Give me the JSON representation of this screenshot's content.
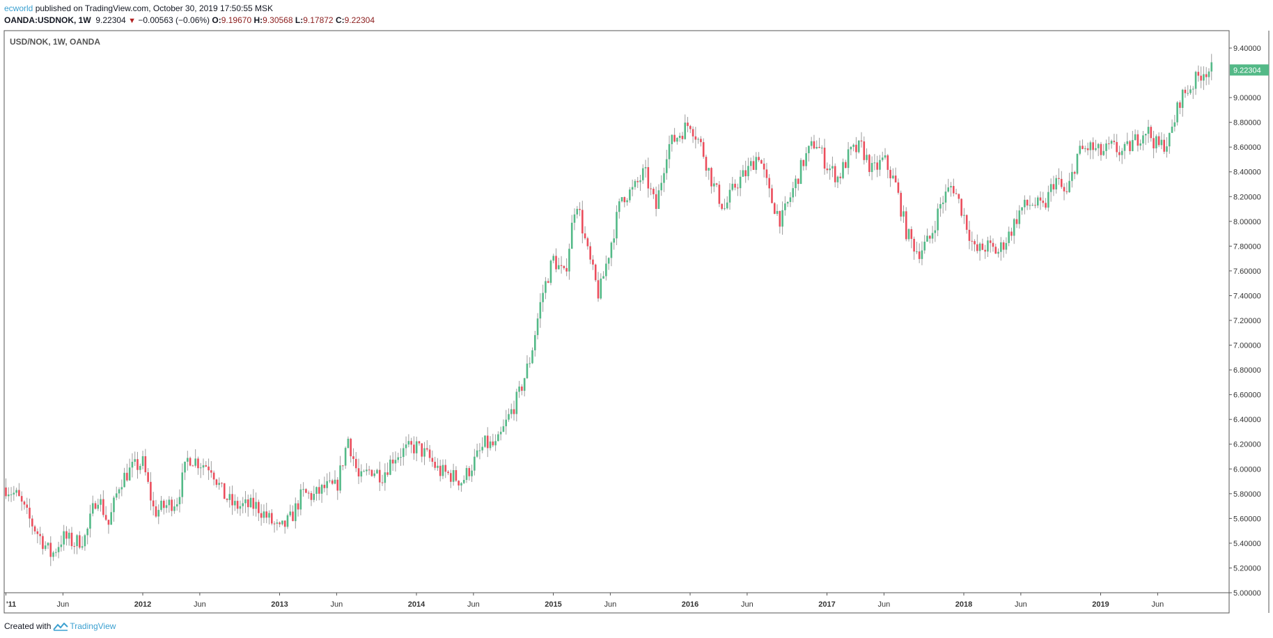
{
  "header": {
    "user": "ecworld",
    "published_text": " published on TradingView.com, October 30, 2019 17:50:55 MSK",
    "symbol": "OANDA:USDNOK, 1W",
    "last": "9.22304",
    "change": "−0.00563 (−0.06%)",
    "o_label": "O:",
    "o_value": "9.19670",
    "h_label": "H:",
    "h_value": "9.30568",
    "l_label": "L:",
    "l_value": "9.17872",
    "c_label": "C:",
    "c_value": "9.22304"
  },
  "footer": {
    "created_with": "Created with",
    "brand": "TradingView"
  },
  "chart_data": {
    "type": "candlestick",
    "title": "USD/NOK, 1W, OANDA",
    "y_ticks": [
      "9.40000",
      "9.00000",
      "8.80000",
      "8.60000",
      "8.40000",
      "8.20000",
      "8.00000",
      "7.80000",
      "7.60000",
      "7.40000",
      "7.20000",
      "7.00000",
      "6.80000",
      "6.60000",
      "6.40000",
      "6.20000",
      "6.00000",
      "5.80000",
      "5.60000",
      "5.40000",
      "5.20000",
      "5.00000"
    ],
    "ylim": [
      5.0,
      9.5
    ],
    "x_ticks": [
      {
        "label": "'11",
        "date": "2011-01"
      },
      {
        "label": "Jun",
        "date": "2011-06"
      },
      {
        "label": "2012",
        "date": "2012-01"
      },
      {
        "label": "Jun",
        "date": "2012-06"
      },
      {
        "label": "2013",
        "date": "2013-01"
      },
      {
        "label": "Jun",
        "date": "2013-06"
      },
      {
        "label": "2014",
        "date": "2014-01"
      },
      {
        "label": "Jun",
        "date": "2014-06"
      },
      {
        "label": "2015",
        "date": "2015-01"
      },
      {
        "label": "Jun",
        "date": "2015-06"
      },
      {
        "label": "2016",
        "date": "2016-01"
      },
      {
        "label": "Jun",
        "date": "2016-06"
      },
      {
        "label": "2017",
        "date": "2017-01"
      },
      {
        "label": "Jun",
        "date": "2017-06"
      },
      {
        "label": "2018",
        "date": "2018-01"
      },
      {
        "label": "Jun",
        "date": "2018-06"
      },
      {
        "label": "2019",
        "date": "2019-01"
      },
      {
        "label": "Jun",
        "date": "2019-06"
      }
    ],
    "last_price_label": "9.22304",
    "last_price": 9.22304,
    "colors": {
      "up": "#53b987",
      "down": "#eb4d5c",
      "wick": "#9b9b9b",
      "badge": "#53b987"
    },
    "series": [
      {
        "date": "2011-01",
        "close": 5.85
      },
      {
        "date": "2011-02",
        "close": 5.78
      },
      {
        "date": "2011-03",
        "close": 5.6
      },
      {
        "date": "2011-04",
        "close": 5.45
      },
      {
        "date": "2011-05",
        "close": 5.3
      },
      {
        "date": "2011-06",
        "close": 5.45
      },
      {
        "date": "2011-07",
        "close": 5.4
      },
      {
        "date": "2011-08",
        "close": 5.45
      },
      {
        "date": "2011-09",
        "close": 5.8
      },
      {
        "date": "2011-10",
        "close": 5.55
      },
      {
        "date": "2011-11",
        "close": 5.9
      },
      {
        "date": "2011-12",
        "close": 6.0
      },
      {
        "date": "2012-01",
        "close": 6.05
      },
      {
        "date": "2012-02",
        "close": 5.65
      },
      {
        "date": "2012-03",
        "close": 5.7
      },
      {
        "date": "2012-04",
        "close": 5.75
      },
      {
        "date": "2012-05",
        "close": 6.1
      },
      {
        "date": "2012-06",
        "close": 6.05
      },
      {
        "date": "2012-07",
        "close": 6.02
      },
      {
        "date": "2012-08",
        "close": 5.8
      },
      {
        "date": "2012-09",
        "close": 5.7
      },
      {
        "date": "2012-10",
        "close": 5.7
      },
      {
        "date": "2012-11",
        "close": 5.7
      },
      {
        "date": "2012-12",
        "close": 5.6
      },
      {
        "date": "2013-01",
        "close": 5.5
      },
      {
        "date": "2013-02",
        "close": 5.6
      },
      {
        "date": "2013-03",
        "close": 5.8
      },
      {
        "date": "2013-04",
        "close": 5.78
      },
      {
        "date": "2013-05",
        "close": 5.85
      },
      {
        "date": "2013-06",
        "close": 5.85
      },
      {
        "date": "2013-07",
        "close": 6.25
      },
      {
        "date": "2013-08",
        "close": 5.9
      },
      {
        "date": "2013-09",
        "close": 6.0
      },
      {
        "date": "2013-10",
        "close": 5.95
      },
      {
        "date": "2013-11",
        "close": 6.1
      },
      {
        "date": "2013-12",
        "close": 6.15
      },
      {
        "date": "2014-01",
        "close": 6.18
      },
      {
        "date": "2014-02",
        "close": 6.1
      },
      {
        "date": "2014-03",
        "close": 5.98
      },
      {
        "date": "2014-04",
        "close": 5.95
      },
      {
        "date": "2014-05",
        "close": 5.9
      },
      {
        "date": "2014-06",
        "close": 6.05
      },
      {
        "date": "2014-07",
        "close": 6.2
      },
      {
        "date": "2014-08",
        "close": 6.18
      },
      {
        "date": "2014-09",
        "close": 6.4
      },
      {
        "date": "2014-10",
        "close": 6.6
      },
      {
        "date": "2014-11",
        "close": 6.9
      },
      {
        "date": "2014-12",
        "close": 7.4
      },
      {
        "date": "2015-01",
        "close": 7.7
      },
      {
        "date": "2015-02",
        "close": 7.55
      },
      {
        "date": "2015-03",
        "close": 8.2
      },
      {
        "date": "2015-04",
        "close": 7.75
      },
      {
        "date": "2015-05",
        "close": 7.4
      },
      {
        "date": "2015-06",
        "close": 7.8
      },
      {
        "date": "2015-07",
        "close": 8.2
      },
      {
        "date": "2015-08",
        "close": 8.25
      },
      {
        "date": "2015-09",
        "close": 8.4
      },
      {
        "date": "2015-10",
        "close": 8.1
      },
      {
        "date": "2015-11",
        "close": 8.6
      },
      {
        "date": "2015-12",
        "close": 8.7
      },
      {
        "date": "2016-01",
        "close": 8.8
      },
      {
        "date": "2016-02",
        "close": 8.6
      },
      {
        "date": "2016-03",
        "close": 8.3
      },
      {
        "date": "2016-04",
        "close": 8.1
      },
      {
        "date": "2016-05",
        "close": 8.3
      },
      {
        "date": "2016-06",
        "close": 8.4
      },
      {
        "date": "2016-07",
        "close": 8.55
      },
      {
        "date": "2016-08",
        "close": 8.2
      },
      {
        "date": "2016-09",
        "close": 8.0
      },
      {
        "date": "2016-10",
        "close": 8.25
      },
      {
        "date": "2016-11",
        "close": 8.5
      },
      {
        "date": "2016-12",
        "close": 8.65
      },
      {
        "date": "2017-01",
        "close": 8.45
      },
      {
        "date": "2017-02",
        "close": 8.35
      },
      {
        "date": "2017-03",
        "close": 8.55
      },
      {
        "date": "2017-04",
        "close": 8.6
      },
      {
        "date": "2017-05",
        "close": 8.4
      },
      {
        "date": "2017-06",
        "close": 8.5
      },
      {
        "date": "2017-07",
        "close": 8.3
      },
      {
        "date": "2017-08",
        "close": 7.9
      },
      {
        "date": "2017-09",
        "close": 7.75
      },
      {
        "date": "2017-10",
        "close": 7.85
      },
      {
        "date": "2017-11",
        "close": 8.15
      },
      {
        "date": "2017-12",
        "close": 8.3
      },
      {
        "date": "2018-01",
        "close": 8.05
      },
      {
        "date": "2018-02",
        "close": 7.75
      },
      {
        "date": "2018-03",
        "close": 7.8
      },
      {
        "date": "2018-04",
        "close": 7.75
      },
      {
        "date": "2018-05",
        "close": 7.9
      },
      {
        "date": "2018-06",
        "close": 8.1
      },
      {
        "date": "2018-07",
        "close": 8.15
      },
      {
        "date": "2018-08",
        "close": 8.1
      },
      {
        "date": "2018-09",
        "close": 8.35
      },
      {
        "date": "2018-10",
        "close": 8.2
      },
      {
        "date": "2018-11",
        "close": 8.55
      },
      {
        "date": "2018-12",
        "close": 8.6
      },
      {
        "date": "2019-01",
        "close": 8.55
      },
      {
        "date": "2019-02",
        "close": 8.6
      },
      {
        "date": "2019-03",
        "close": 8.55
      },
      {
        "date": "2019-04",
        "close": 8.65
      },
      {
        "date": "2019-05",
        "close": 8.75
      },
      {
        "date": "2019-06",
        "close": 8.6
      },
      {
        "date": "2019-07",
        "close": 8.65
      },
      {
        "date": "2019-08",
        "close": 9.0
      },
      {
        "date": "2019-09",
        "close": 9.1
      },
      {
        "date": "2019-10",
        "close": 9.22
      }
    ]
  }
}
